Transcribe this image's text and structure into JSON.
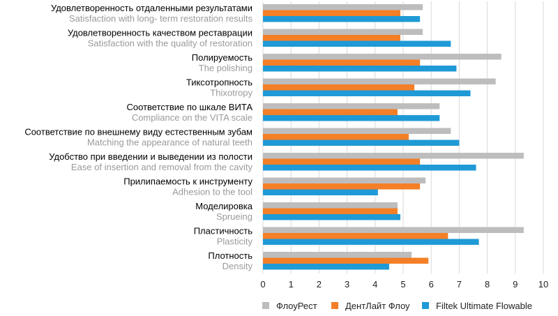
{
  "chart_data": {
    "type": "bar",
    "orientation": "horizontal",
    "title": "",
    "xlabel": "",
    "ylabel": "",
    "xlim": [
      0,
      10
    ],
    "x_ticks": [
      0,
      1,
      2,
      3,
      4,
      5,
      6,
      7,
      8,
      9,
      10
    ],
    "grid": "vertical",
    "legend_position": "bottom",
    "colors": [
      "#bdbdbd",
      "#f47f26",
      "#1f9ad6"
    ],
    "categories": [
      {
        "ru": "Удовлетворенность отдаленными результатами",
        "en": "Satisfaction with long- term restoration results"
      },
      {
        "ru": "Удовлетворенность качеством реставрации",
        "en": "Satisfaction with the quality of restoration"
      },
      {
        "ru": "Полируемость",
        "en": "The polishing"
      },
      {
        "ru": "Тиксотропность",
        "en": "Thixotropy"
      },
      {
        "ru": "Соответствие по шкале ВИТА",
        "en": "Compliance on the VITA scale"
      },
      {
        "ru": "Соответствие по внешнему виду естественным зубам",
        "en": "Matching the appearance of natural teeth"
      },
      {
        "ru": "Удобство при введении и выведении из полости",
        "en": "Ease of insertion and removal from the cavity"
      },
      {
        "ru": "Прилипаемость к инструменту",
        "en": "Adhesion to the tool"
      },
      {
        "ru": "Моделировка",
        "en": "Sprueing"
      },
      {
        "ru": "Пластичность",
        "en": "Plasticity"
      },
      {
        "ru": "Плотность",
        "en": "Density"
      }
    ],
    "series": [
      {
        "name": "ФлоуРест",
        "values": [
          5.7,
          5.7,
          8.5,
          8.3,
          6.3,
          6.7,
          9.3,
          5.8,
          4.8,
          9.3,
          5.3
        ]
      },
      {
        "name": "ДентЛайт Флоу",
        "values": [
          4.9,
          4.9,
          5.6,
          5.4,
          4.8,
          5.2,
          5.6,
          5.6,
          4.8,
          6.6,
          5.9
        ]
      },
      {
        "name": "Filtek Ultimate Flowable",
        "values": [
          5.6,
          6.7,
          6.9,
          7.4,
          6.3,
          7.0,
          7.6,
          4.1,
          4.9,
          7.7,
          4.5
        ]
      }
    ]
  }
}
